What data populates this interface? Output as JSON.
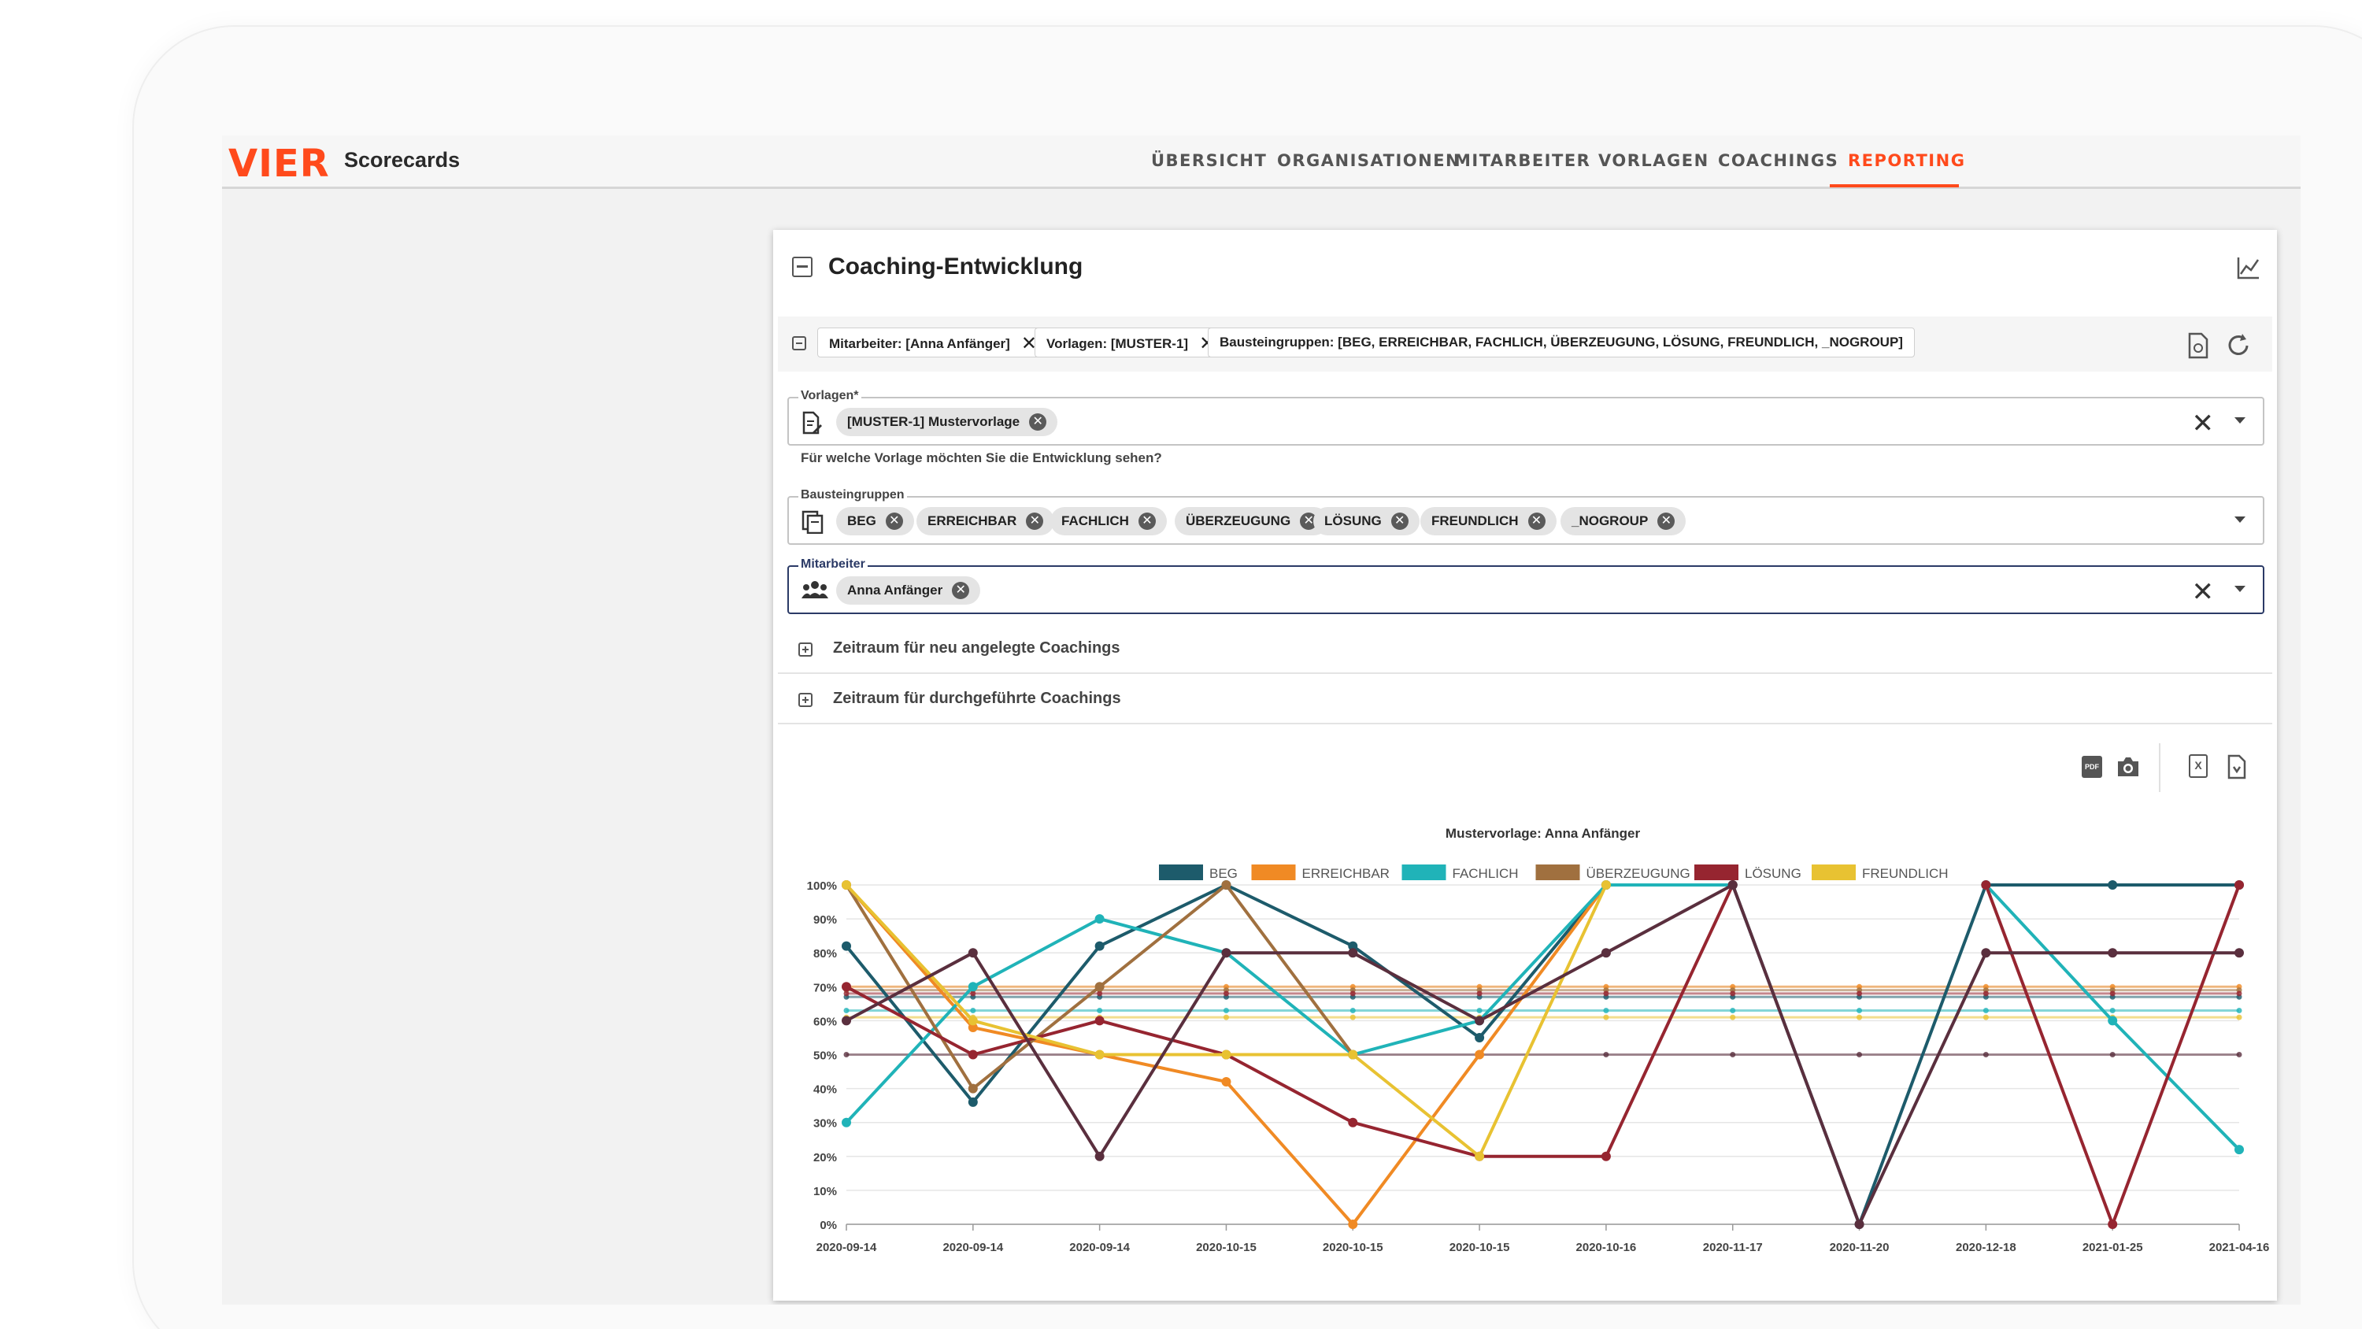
{
  "app": {
    "logo": "VIER",
    "name": "Scorecards"
  },
  "nav": {
    "items": [
      {
        "label": "ÜBERSICHT"
      },
      {
        "label": "ORGANISATIONEN"
      },
      {
        "label": "MITARBEITER"
      },
      {
        "label": "VORLAGEN"
      },
      {
        "label": "COACHINGS"
      },
      {
        "label": "REPORTING",
        "active": true
      }
    ]
  },
  "card": {
    "title": "Coaching-Entwicklung"
  },
  "filters": {
    "chips": [
      {
        "label": "Mitarbeiter: [Anna Anfänger]",
        "close": "✕"
      },
      {
        "label": "Vorlagen: [MUSTER-1]",
        "close": "✕"
      },
      {
        "label": "Bausteingruppen: [BEG, ERREICHBAR, FACHLICH, ÜBERZEUGUNG, LÖSUNG, FREUNDLICH, _NOGROUP]"
      }
    ]
  },
  "form": {
    "vorlagen": {
      "label": "Vorlagen*",
      "tags": [
        "[MUSTER-1] Mustervorlage"
      ],
      "helper": "Für welche Vorlage möchten Sie die Entwicklung sehen?"
    },
    "bausteingruppen": {
      "label": "Bausteingruppen",
      "tags": [
        "BEG",
        "ERREICHBAR",
        "FACHLICH",
        "ÜBERZEUGUNG",
        "LÖSUNG",
        "FREUNDLICH",
        "_NOGROUP"
      ]
    },
    "mitarbeiter": {
      "label": "Mitarbeiter",
      "tags": [
        "Anna Anfänger"
      ]
    },
    "clear_glyph": "✕",
    "tag_close_glyph": "✕"
  },
  "accordions": [
    {
      "label": "Zeitraum für neu angelegte Coachings"
    },
    {
      "label": "Zeitraum für durchgeführte Coachings"
    }
  ],
  "icons": {
    "chart_toggle": "line-chart-icon",
    "export_pdf": "pdf-icon",
    "camera": "camera-icon",
    "excel": "excel-file-icon",
    "doc": "document-icon",
    "reload": "refresh-icon",
    "save_filter": "save-filter-icon",
    "pdf_text": "PDF",
    "excel_text": "X"
  },
  "chart_data": {
    "type": "line",
    "title": "Mustervorlage: Anna Anfänger",
    "categories": [
      "2020-09-14",
      "2020-09-14",
      "2020-09-14",
      "2020-10-15",
      "2020-10-15",
      "2020-10-15",
      "2020-10-16",
      "2020-11-17",
      "2020-11-20",
      "2020-12-18",
      "2021-01-25",
      "2021-04-16"
    ],
    "yticks": [
      "0%",
      "10%",
      "20%",
      "30%",
      "40%",
      "50%",
      "60%",
      "70%",
      "80%",
      "90%",
      "100%"
    ],
    "ylim": [
      0,
      100
    ],
    "legend_position": "top-center",
    "series": [
      {
        "name": "BEG",
        "color": "#1d5b6b",
        "values": [
          82,
          36,
          82,
          100,
          82,
          55,
          100,
          100,
          0,
          100,
          100,
          100
        ],
        "avg": 67
      },
      {
        "name": "ERREICHBAR",
        "color": "#f08a24",
        "values": [
          100,
          58,
          50,
          42,
          0,
          50,
          100,
          null,
          null,
          null,
          null,
          null
        ],
        "avg": 70
      },
      {
        "name": "FACHLICH",
        "color": "#20b3b8",
        "values": [
          30,
          70,
          90,
          80,
          50,
          60,
          100,
          100,
          null,
          100,
          60,
          22
        ],
        "avg": 63
      },
      {
        "name": "ÜBERZEUGUNG",
        "color": "#a0703f",
        "values": [
          100,
          40,
          70,
          100,
          50,
          null,
          null,
          null,
          null,
          null,
          null,
          null
        ],
        "avg": 69
      },
      {
        "name": "LÖSUNG",
        "color": "#962530",
        "values": [
          70,
          50,
          60,
          50,
          30,
          20,
          20,
          100,
          null,
          100,
          0,
          100
        ],
        "avg": 68
      },
      {
        "name": "FREUNDLICH",
        "color": "#e8c232",
        "values": [
          100,
          60,
          50,
          50,
          50,
          20,
          100,
          null,
          null,
          null,
          null,
          null
        ],
        "avg": 61
      },
      {
        "name": "",
        "color": "#5a2f3e",
        "values": [
          60,
          80,
          20,
          80,
          80,
          60,
          80,
          100,
          0,
          80,
          80,
          80
        ],
        "avg": 50
      }
    ]
  }
}
